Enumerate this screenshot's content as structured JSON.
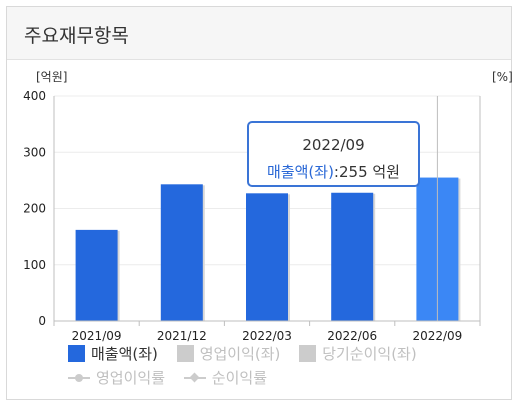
{
  "header": {
    "title": "주요재무항목"
  },
  "chart_data": {
    "type": "bar",
    "categories": [
      "2021/09",
      "2021/12",
      "2022/03",
      "2022/06",
      "2022/09"
    ],
    "series": [
      {
        "name": "매출액(좌)",
        "values": [
          162,
          243,
          227,
          228,
          255
        ]
      }
    ],
    "y_left_unit": "[억원]",
    "y_right_unit": "[%]",
    "ylim": [
      0,
      400
    ],
    "yticks": [
      "0",
      "100",
      "200",
      "300",
      "400"
    ],
    "bar_color": "#2468dd",
    "highlight_color": "#3b87f5",
    "highlight_index": 4,
    "grid": true
  },
  "tooltip": {
    "title": "2022/09",
    "series": "매출액(좌)",
    "value": ":255 억원"
  },
  "legend": {
    "items": [
      {
        "label": "매출액(좌)",
        "color": "#2468dd",
        "active": true
      },
      {
        "label": "영업이익(좌)",
        "color": "#cccccc",
        "active": false
      },
      {
        "label": "당기순이익(좌)",
        "color": "#cccccc",
        "active": false
      }
    ],
    "line_items": [
      {
        "label": "영업이익률",
        "marker": "circle"
      },
      {
        "label": "순이익률",
        "marker": "diamond"
      }
    ]
  }
}
